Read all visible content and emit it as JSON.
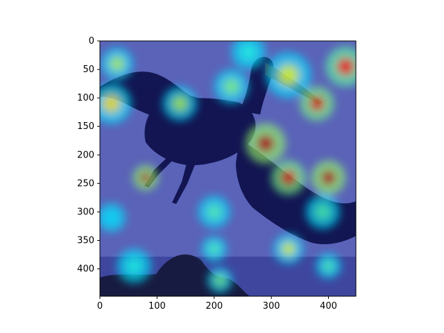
{
  "figure": {
    "image_description_free": true,
    "colormap": "jet",
    "colors": {
      "background": "#ffffff",
      "base_overlay": "#2a2f8f",
      "sky_overlay": "#5a63b8",
      "axis": "#000000"
    }
  },
  "axes": {
    "x_ticks": [
      "0",
      "100",
      "200",
      "300",
      "400"
    ],
    "y_ticks": [
      "0",
      "50",
      "100",
      "150",
      "200",
      "250",
      "300",
      "350",
      "400"
    ],
    "x_range": [
      0,
      448
    ],
    "y_range": [
      0,
      448
    ]
  },
  "heat_spots": [
    {
      "x": 30,
      "y": 40,
      "r": 28,
      "level": 0.55
    },
    {
      "x": 20,
      "y": 110,
      "r": 35,
      "level": 0.65
    },
    {
      "x": 140,
      "y": 110,
      "r": 30,
      "level": 0.55
    },
    {
      "x": 230,
      "y": 80,
      "r": 30,
      "level": 0.5
    },
    {
      "x": 330,
      "y": 60,
      "r": 40,
      "level": 0.6
    },
    {
      "x": 380,
      "y": 110,
      "r": 30,
      "level": 0.9
    },
    {
      "x": 430,
      "y": 45,
      "r": 35,
      "level": 0.85
    },
    {
      "x": 290,
      "y": 180,
      "r": 35,
      "level": 0.95
    },
    {
      "x": 330,
      "y": 240,
      "r": 30,
      "level": 0.9
    },
    {
      "x": 400,
      "y": 240,
      "r": 30,
      "level": 0.95
    },
    {
      "x": 80,
      "y": 240,
      "r": 22,
      "level": 0.95
    },
    {
      "x": 200,
      "y": 300,
      "r": 28,
      "level": 0.45
    },
    {
      "x": 390,
      "y": 300,
      "r": 30,
      "level": 0.45
    },
    {
      "x": 330,
      "y": 365,
      "r": 26,
      "level": 0.6
    },
    {
      "x": 200,
      "y": 365,
      "r": 22,
      "level": 0.45
    },
    {
      "x": 400,
      "y": 395,
      "r": 22,
      "level": 0.45
    },
    {
      "x": 210,
      "y": 420,
      "r": 22,
      "level": 0.5
    },
    {
      "x": 60,
      "y": 395,
      "r": 30,
      "level": 0.4
    },
    {
      "x": 20,
      "y": 310,
      "r": 25,
      "level": 0.35
    },
    {
      "x": 260,
      "y": 20,
      "r": 30,
      "level": 0.4
    }
  ]
}
